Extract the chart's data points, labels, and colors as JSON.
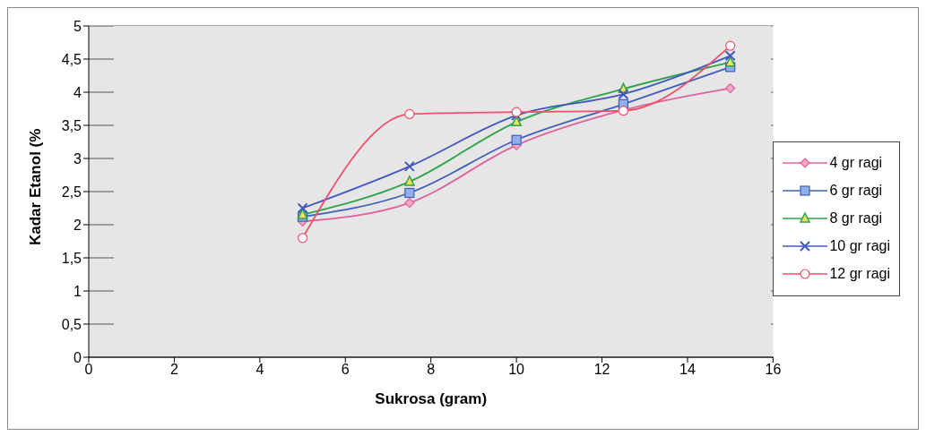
{
  "chart_data": {
    "type": "line",
    "xlabel": "Sukrosa (gram)",
    "ylabel": "Kadar Etanol (%",
    "x": [
      5,
      7.5,
      10,
      12.5,
      15
    ],
    "series": [
      {
        "name": "4 gr ragi",
        "color": "#e0609a",
        "marker": "diamond",
        "values": [
          2.05,
          2.33,
          3.2,
          3.73,
          4.06
        ]
      },
      {
        "name": "6 gr ragi",
        "color": "#3f5fb8",
        "marker": "square",
        "values": [
          2.12,
          2.48,
          3.28,
          3.82,
          4.38
        ]
      },
      {
        "name": "8 gr ragi",
        "color": "#2fa34a",
        "marker": "triangle",
        "values": [
          2.15,
          2.65,
          3.55,
          4.05,
          4.45
        ]
      },
      {
        "name": "10 gr ragi",
        "color": "#4058c0",
        "marker": "cross",
        "values": [
          2.25,
          2.88,
          3.65,
          3.97,
          4.55
        ]
      },
      {
        "name": "12 gr ragi",
        "color": "#f0506a",
        "marker": "circle",
        "values": [
          1.8,
          3.67,
          3.7,
          3.72,
          4.7
        ]
      }
    ],
    "xlim": [
      0,
      16
    ],
    "xticks": [
      0,
      2,
      4,
      6,
      8,
      10,
      12,
      14,
      16
    ],
    "ylim": [
      0,
      5
    ],
    "yticks": [
      0,
      {
        "value": 0.5,
        "label": "0,5"
      },
      1,
      {
        "value": 1.5,
        "label": "1,5"
      },
      2,
      {
        "value": 2.5,
        "label": "2,5"
      },
      3,
      {
        "value": 3.5,
        "label": "3,5"
      },
      4,
      {
        "value": 4.5,
        "label": "4,5"
      },
      5
    ],
    "grid": "y",
    "legend": "right",
    "line_style": "solid"
  }
}
